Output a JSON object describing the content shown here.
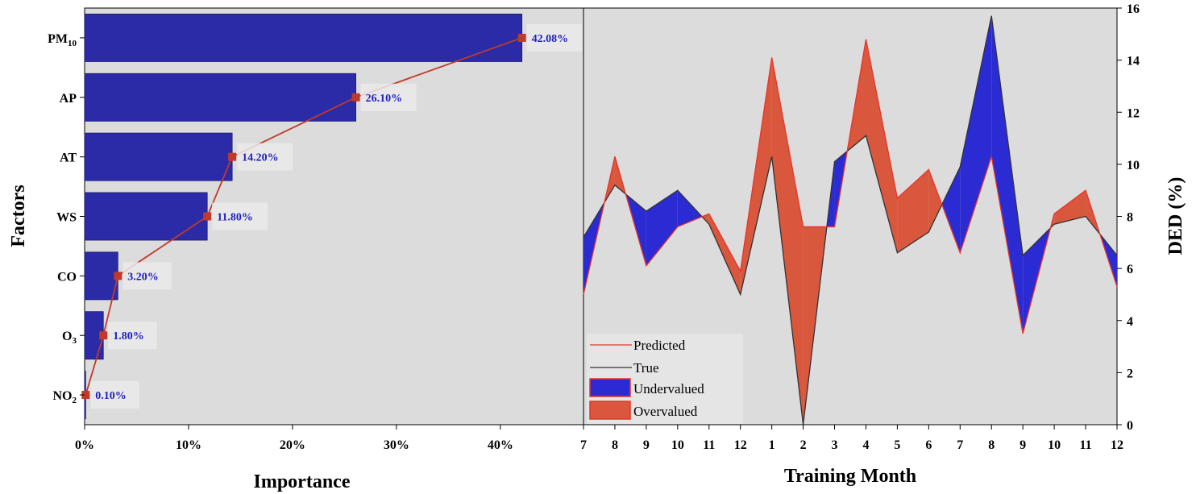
{
  "chart_data": [
    {
      "type": "bar",
      "orientation": "horizontal",
      "xlabel": "Importance",
      "ylabel": "Factors",
      "xlim": [
        0,
        0.48
      ],
      "xticks": [
        "0%",
        "10%",
        "20%",
        "30%",
        "40%"
      ],
      "categories": [
        {
          "label": "PM",
          "sub": "10"
        },
        {
          "label": "AP",
          "sub": ""
        },
        {
          "label": "AT",
          "sub": ""
        },
        {
          "label": "WS",
          "sub": ""
        },
        {
          "label": "CO",
          "sub": ""
        },
        {
          "label": "O",
          "sub": "3"
        },
        {
          "label": "NO",
          "sub": "2"
        }
      ],
      "values": [
        0.4208,
        0.261,
        0.142,
        0.118,
        0.032,
        0.018,
        0.001
      ],
      "data_labels": [
        "42.08%",
        "26.10%",
        "14.20%",
        "11.80%",
        "3.20%",
        "1.80%",
        "0.10%"
      ],
      "bar_color": "#2b2ba8",
      "line_color": "#c0392b",
      "grid": false
    },
    {
      "type": "area",
      "xlabel": "Training Month",
      "ylabel": "DED (%)",
      "ylim": [
        0,
        16
      ],
      "yticks": [
        "0",
        "2",
        "4",
        "6",
        "8",
        "10",
        "12",
        "14",
        "16"
      ],
      "x": [
        "7",
        "8",
        "9",
        "10",
        "11",
        "12",
        "1",
        "2",
        "3",
        "4",
        "5",
        "6",
        "7",
        "8",
        "9",
        "10",
        "11",
        "12"
      ],
      "series": [
        {
          "name": "Predicted",
          "values": [
            5.0,
            10.3,
            6.1,
            7.6,
            8.1,
            5.9,
            14.1,
            7.6,
            7.6,
            14.8,
            8.7,
            9.8,
            6.6,
            10.3,
            3.5,
            8.1,
            9.0,
            5.3
          ]
        },
        {
          "name": "True",
          "values": [
            7.2,
            9.2,
            8.2,
            9.0,
            7.7,
            5.0,
            10.3,
            0.0,
            10.1,
            11.1,
            6.6,
            7.4,
            9.9,
            15.7,
            6.5,
            7.7,
            8.0,
            6.5
          ]
        }
      ],
      "legend": {
        "position": "bottom-left",
        "entries": [
          "Predicted",
          "True",
          "Undervalued",
          "Overvalued"
        ]
      },
      "colors": {
        "predicted": "#e8342a",
        "true": "#333333",
        "undervalued": "#2b2bd4",
        "overvalued": "#d9573d"
      },
      "grid": false
    }
  ]
}
